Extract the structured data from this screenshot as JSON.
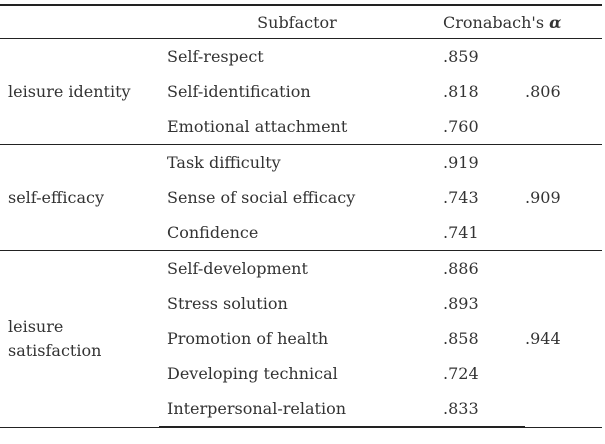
{
  "table": {
    "headers": {
      "factor": "",
      "subfactor": "Subfactor",
      "alpha_prefix": "Cronabach's ",
      "alpha_symbol": "α"
    },
    "groups": [
      {
        "factor": "leisure identity",
        "total": ".806",
        "rows": [
          {
            "subfactor": "Self-respect",
            "alpha": ".859"
          },
          {
            "subfactor": "Self-identification",
            "alpha": ".818"
          },
          {
            "subfactor": "Emotional attachment",
            "alpha": ".760"
          }
        ]
      },
      {
        "factor": "self-efficacy",
        "total": ".909",
        "rows": [
          {
            "subfactor": "Task difficulty",
            "alpha": ".919"
          },
          {
            "subfactor": "Sense of social efficacy",
            "alpha": ".743"
          },
          {
            "subfactor": "Confidence",
            "alpha": ".741"
          }
        ]
      },
      {
        "factor": "leisure satisfaction",
        "total": ".944",
        "rows": [
          {
            "subfactor": "Self-development",
            "alpha": ".886"
          },
          {
            "subfactor": "Stress solution",
            "alpha": ".893"
          },
          {
            "subfactor": "Promotion of health",
            "alpha": ".858"
          },
          {
            "subfactor": "Developing technical",
            "alpha": ".724"
          },
          {
            "subfactor": "Interpersonal-relation",
            "alpha": ".833"
          }
        ]
      }
    ]
  }
}
